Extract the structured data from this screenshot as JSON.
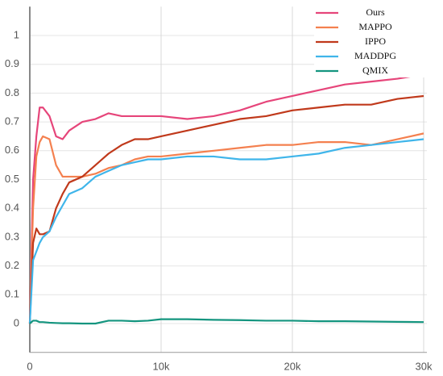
{
  "chart_data": {
    "type": "line",
    "x": [
      0,
      250,
      500,
      750,
      1000,
      1500,
      2000,
      2500,
      3000,
      4000,
      5000,
      6000,
      7000,
      8000,
      9000,
      10000,
      12000,
      14000,
      16000,
      18000,
      20000,
      22000,
      24000,
      26000,
      28000,
      30000
    ],
    "series": [
      {
        "name": "Ours",
        "color": "#e6457a",
        "values": [
          0,
          0.5,
          0.65,
          0.75,
          0.75,
          0.72,
          0.65,
          0.64,
          0.67,
          0.7,
          0.71,
          0.73,
          0.72,
          0.72,
          0.72,
          0.72,
          0.71,
          0.72,
          0.74,
          0.77,
          0.79,
          0.81,
          0.83,
          0.84,
          0.85,
          0.865
        ]
      },
      {
        "name": "MAPPO",
        "color": "#f4804f",
        "values": [
          0,
          0.4,
          0.58,
          0.63,
          0.65,
          0.64,
          0.55,
          0.51,
          0.51,
          0.51,
          0.52,
          0.54,
          0.55,
          0.57,
          0.58,
          0.58,
          0.59,
          0.6,
          0.61,
          0.62,
          0.62,
          0.63,
          0.63,
          0.62,
          0.64,
          0.66
        ]
      },
      {
        "name": "IPPO",
        "color": "#c0391b",
        "values": [
          0,
          0.28,
          0.33,
          0.31,
          0.31,
          0.32,
          0.4,
          0.45,
          0.49,
          0.51,
          0.55,
          0.59,
          0.62,
          0.64,
          0.64,
          0.65,
          0.67,
          0.69,
          0.71,
          0.72,
          0.74,
          0.75,
          0.76,
          0.76,
          0.78,
          0.79
        ]
      },
      {
        "name": "MADDPG",
        "color": "#3fb5ea",
        "values": [
          0,
          0.22,
          0.25,
          0.28,
          0.3,
          0.32,
          0.37,
          0.41,
          0.45,
          0.47,
          0.51,
          0.53,
          0.55,
          0.56,
          0.57,
          0.57,
          0.58,
          0.58,
          0.57,
          0.57,
          0.58,
          0.59,
          0.61,
          0.62,
          0.63,
          0.64
        ]
      },
      {
        "name": "QMIX",
        "color": "#14957f",
        "values": [
          0,
          0.01,
          0.01,
          0.005,
          0.005,
          0.003,
          0.002,
          0.001,
          0.001,
          0,
          0,
          0.01,
          0.01,
          0.008,
          0.01,
          0.015,
          0.015,
          0.013,
          0.012,
          0.01,
          0.01,
          0.008,
          0.008,
          0.007,
          0.006,
          0.005
        ]
      }
    ],
    "xlim": [
      0,
      30000
    ],
    "xticks": [
      0,
      {
        "value": 10000,
        "label": "10k"
      },
      {
        "value": 20000,
        "label": "20k"
      },
      {
        "value": 30000,
        "label": "30k"
      }
    ],
    "ylim": [
      -0.1,
      1.1
    ],
    "yticks": [
      0,
      0.1,
      0.2,
      0.3,
      0.4,
      0.5,
      0.6,
      0.7,
      0.8,
      0.9,
      1
    ],
    "grid": true,
    "legend": "top-right"
  }
}
